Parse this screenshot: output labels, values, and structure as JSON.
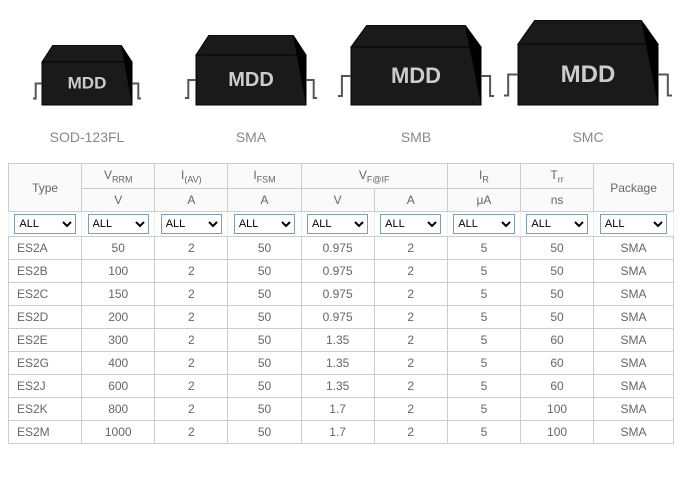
{
  "packages": [
    {
      "label": "SOD-123FL",
      "marking": "MDD",
      "w": 90,
      "h": 60
    },
    {
      "label": "SMA",
      "marking": "MDD",
      "w": 110,
      "h": 70
    },
    {
      "label": "SMB",
      "marking": "MDD",
      "w": 130,
      "h": 80
    },
    {
      "label": "SMC",
      "marking": "MDD",
      "w": 140,
      "h": 85
    }
  ],
  "columns": {
    "type": {
      "label": "Type",
      "unit": ""
    },
    "vrrm": {
      "label_html": "V<sub>RRM</sub>",
      "unit": "V"
    },
    "iav": {
      "label_html": "I<sub>(AV)</sub>",
      "unit": "A"
    },
    "ifsm": {
      "label_html": "I<sub>FSM</sub>",
      "unit": "A"
    },
    "vfif_v": {
      "label_html": "V<sub>F@IF</sub>",
      "unit": "V"
    },
    "vfif_a": {
      "unit": "A"
    },
    "ir": {
      "label_html": "I<sub>R</sub>",
      "unit": "μA"
    },
    "trr": {
      "label_html": "T<sub>rr</sub>",
      "unit": "ns"
    },
    "package": {
      "label": "Package",
      "unit": ""
    }
  },
  "filter_value": "ALL",
  "rows": [
    {
      "type": "ES2A",
      "vrrm": "50",
      "iav": "2",
      "ifsm": "50",
      "vfv": "0.975",
      "vfa": "2",
      "ir": "5",
      "trr": "50",
      "pkg": "SMA"
    },
    {
      "type": "ES2B",
      "vrrm": "100",
      "iav": "2",
      "ifsm": "50",
      "vfv": "0.975",
      "vfa": "2",
      "ir": "5",
      "trr": "50",
      "pkg": "SMA"
    },
    {
      "type": "ES2C",
      "vrrm": "150",
      "iav": "2",
      "ifsm": "50",
      "vfv": "0.975",
      "vfa": "2",
      "ir": "5",
      "trr": "50",
      "pkg": "SMA"
    },
    {
      "type": "ES2D",
      "vrrm": "200",
      "iav": "2",
      "ifsm": "50",
      "vfv": "0.975",
      "vfa": "2",
      "ir": "5",
      "trr": "50",
      "pkg": "SMA"
    },
    {
      "type": "ES2E",
      "vrrm": "300",
      "iav": "2",
      "ifsm": "50",
      "vfv": "1.35",
      "vfa": "2",
      "ir": "5",
      "trr": "60",
      "pkg": "SMA"
    },
    {
      "type": "ES2G",
      "vrrm": "400",
      "iav": "2",
      "ifsm": "50",
      "vfv": "1.35",
      "vfa": "2",
      "ir": "5",
      "trr": "60",
      "pkg": "SMA"
    },
    {
      "type": "ES2J",
      "vrrm": "600",
      "iav": "2",
      "ifsm": "50",
      "vfv": "1.35",
      "vfa": "2",
      "ir": "5",
      "trr": "60",
      "pkg": "SMA"
    },
    {
      "type": "ES2K",
      "vrrm": "800",
      "iav": "2",
      "ifsm": "50",
      "vfv": "1.7",
      "vfa": "2",
      "ir": "5",
      "trr": "100",
      "pkg": "SMA"
    },
    {
      "type": "ES2M",
      "vrrm": "1000",
      "iav": "2",
      "ifsm": "50",
      "vfv": "1.7",
      "vfa": "2",
      "ir": "5",
      "trr": "100",
      "pkg": "SMA"
    }
  ],
  "colors": {
    "chip_fill": "#1a1a1a",
    "chip_stroke": "#000000",
    "marking": "#cccccc",
    "lead": "#ffffff",
    "border": "#cccccc",
    "text": "#666666"
  },
  "col_widths": [
    "11%",
    "10%",
    "10%",
    "10%",
    "10%",
    "10%",
    "10%",
    "10%",
    "11%",
    "8%"
  ]
}
